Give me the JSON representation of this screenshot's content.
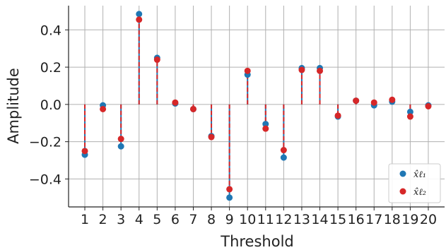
{
  "chart_data": {
    "type": "scatter",
    "xlabel": "Threshold",
    "ylabel": "Amplitude",
    "x": [
      1,
      2,
      3,
      4,
      5,
      6,
      7,
      8,
      9,
      10,
      11,
      12,
      13,
      14,
      15,
      16,
      17,
      18,
      19,
      20
    ],
    "xlim": [
      0.1,
      20.9
    ],
    "ylim": [
      -0.55,
      0.53
    ],
    "yticks": [
      -0.4,
      -0.2,
      0.0,
      0.2,
      0.4
    ],
    "ytick_labels": [
      "−0.4",
      "−0.2",
      "0.0",
      "0.2",
      "0.4"
    ],
    "grid": true,
    "legend_position": "bottom-right",
    "series": [
      {
        "name": "x̂ℓ₁",
        "color": "#1f77b4",
        "values": [
          -0.27,
          -0.005,
          -0.225,
          0.485,
          0.25,
          0.005,
          -0.025,
          -0.17,
          -0.5,
          0.16,
          -0.105,
          -0.285,
          0.195,
          0.195,
          -0.065,
          0.02,
          -0.005,
          0.015,
          -0.04,
          -0.005
        ]
      },
      {
        "name": "x̂ℓ₂",
        "color": "#d62728",
        "values": [
          -0.25,
          -0.025,
          -0.185,
          0.455,
          0.24,
          0.01,
          -0.025,
          -0.175,
          -0.455,
          0.18,
          -0.13,
          -0.245,
          0.185,
          0.18,
          -0.06,
          0.02,
          0.01,
          0.025,
          -0.065,
          -0.01
        ]
      }
    ]
  }
}
